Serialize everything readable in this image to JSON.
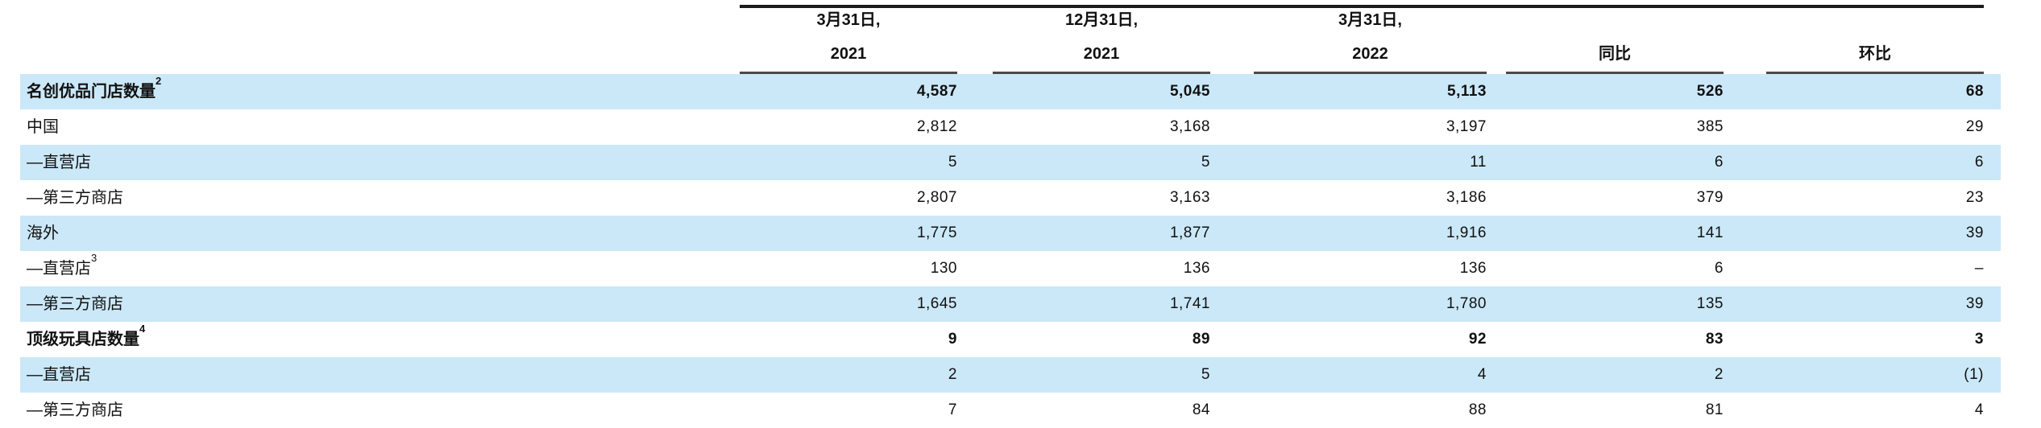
{
  "table": {
    "header": {
      "columns": [
        {
          "line1": "3月31日,",
          "line2": "2021"
        },
        {
          "line1": "12月31日,",
          "line2": "2021"
        },
        {
          "line1": "3月31日,",
          "line2": "2022"
        },
        {
          "line1": "",
          "line2": "同比"
        },
        {
          "line1": "",
          "line2": "环比"
        }
      ]
    },
    "rows": [
      {
        "label": "名创优品门店数量",
        "sup": "2",
        "bold": true,
        "shaded": true,
        "values": [
          "4,587",
          "5,045",
          "5,113",
          "526",
          "68"
        ]
      },
      {
        "label": "中国",
        "sup": "",
        "bold": false,
        "shaded": false,
        "values": [
          "2,812",
          "3,168",
          "3,197",
          "385",
          "29"
        ]
      },
      {
        "label": "—直营店",
        "sup": "",
        "bold": false,
        "shaded": true,
        "values": [
          "5",
          "5",
          "11",
          "6",
          "6"
        ]
      },
      {
        "label": "—第三方商店",
        "sup": "",
        "bold": false,
        "shaded": false,
        "values": [
          "2,807",
          "3,163",
          "3,186",
          "379",
          "23"
        ]
      },
      {
        "label": "海外",
        "sup": "",
        "bold": false,
        "shaded": true,
        "values": [
          "1,775",
          "1,877",
          "1,916",
          "141",
          "39"
        ]
      },
      {
        "label": "—直营店",
        "sup": "3",
        "bold": false,
        "shaded": false,
        "values": [
          "130",
          "136",
          "136",
          "6",
          "–"
        ]
      },
      {
        "label": "—第三方商店",
        "sup": "",
        "bold": false,
        "shaded": true,
        "values": [
          "1,645",
          "1,741",
          "1,780",
          "135",
          "39"
        ]
      },
      {
        "label": "顶级玩具店数量",
        "sup": "4",
        "bold": true,
        "shaded": false,
        "values": [
          "9",
          "89",
          "92",
          "83",
          "3"
        ]
      },
      {
        "label": "—直营店",
        "sup": "",
        "bold": false,
        "shaded": true,
        "values": [
          "2",
          "5",
          "4",
          "2",
          "(1)"
        ]
      },
      {
        "label": "—第三方商店",
        "sup": "",
        "bold": false,
        "shaded": false,
        "values": [
          "7",
          "84",
          "88",
          "81",
          "4"
        ]
      }
    ],
    "colors": {
      "row_highlight": "#cbe8f8",
      "top_rule": "#1b1b1b",
      "header_underline": "#4a4a4a",
      "text": "#111111"
    }
  }
}
